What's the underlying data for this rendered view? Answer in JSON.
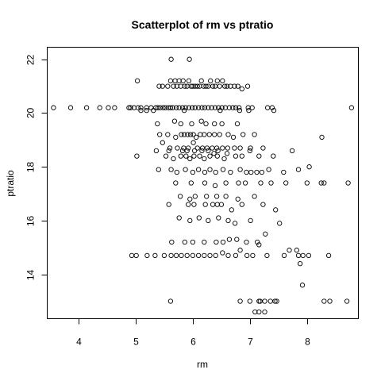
{
  "chart_data": {
    "type": "scatter",
    "title": "Scatterplot of rm vs ptratio",
    "xlabel": "rm",
    "ylabel": "ptratio",
    "xlim": [
      3.45,
      8.9
    ],
    "ylim": [
      12.35,
      22.45
    ],
    "xticks": [
      4,
      5,
      6,
      7,
      8
    ],
    "yticks": [
      14,
      16,
      18,
      20,
      22
    ],
    "grid": false,
    "marker": "open-circle",
    "points": [
      [
        3.56,
        20.2
      ],
      [
        3.86,
        20.2
      ],
      [
        4.14,
        20.2
      ],
      [
        4.37,
        20.2
      ],
      [
        4.52,
        20.2
      ],
      [
        4.63,
        20.2
      ],
      [
        4.88,
        20.2
      ],
      [
        4.91,
        20.2
      ],
      [
        4.97,
        20.2
      ],
      [
        5.04,
        20.2
      ],
      [
        5.09,
        20.2
      ],
      [
        5.19,
        20.2
      ],
      [
        5.27,
        20.2
      ],
      [
        5.35,
        20.2
      ],
      [
        5.39,
        20.2
      ],
      [
        5.43,
        20.2
      ],
      [
        5.48,
        20.2
      ],
      [
        5.52,
        20.2
      ],
      [
        5.57,
        20.2
      ],
      [
        5.61,
        20.2
      ],
      [
        5.65,
        20.2
      ],
      [
        5.71,
        20.2
      ],
      [
        5.76,
        20.2
      ],
      [
        5.82,
        20.2
      ],
      [
        5.87,
        20.2
      ],
      [
        5.93,
        20.2
      ],
      [
        5.99,
        20.2
      ],
      [
        6.04,
        20.2
      ],
      [
        6.1,
        20.2
      ],
      [
        6.16,
        20.2
      ],
      [
        6.21,
        20.2
      ],
      [
        6.27,
        20.2
      ],
      [
        6.33,
        20.2
      ],
      [
        6.39,
        20.2
      ],
      [
        6.45,
        20.2
      ],
      [
        6.51,
        20.2
      ],
      [
        6.57,
        20.2
      ],
      [
        6.64,
        20.2
      ],
      [
        6.7,
        20.2
      ],
      [
        6.75,
        20.2
      ],
      [
        6.81,
        20.2
      ],
      [
        6.97,
        20.2
      ],
      [
        7.04,
        20.2
      ],
      [
        7.31,
        20.2
      ],
      [
        7.39,
        20.2
      ],
      [
        8.78,
        20.2
      ],
      [
        5.62,
        22.0
      ],
      [
        5.94,
        22.0
      ],
      [
        5.03,
        21.2
      ],
      [
        5.41,
        21.0
      ],
      [
        5.47,
        21.0
      ],
      [
        5.56,
        21.0
      ],
      [
        5.61,
        21.2
      ],
      [
        5.66,
        21.0
      ],
      [
        5.69,
        21.2
      ],
      [
        5.72,
        21.0
      ],
      [
        5.76,
        21.2
      ],
      [
        5.79,
        21.0
      ],
      [
        5.83,
        21.2
      ],
      [
        5.86,
        21.0
      ],
      [
        5.9,
        21.0
      ],
      [
        5.93,
        21.2
      ],
      [
        5.97,
        21.0
      ],
      [
        6.0,
        21.0
      ],
      [
        6.04,
        21.0
      ],
      [
        6.08,
        21.0
      ],
      [
        6.12,
        21.0
      ],
      [
        6.15,
        21.2
      ],
      [
        6.19,
        21.0
      ],
      [
        6.23,
        21.0
      ],
      [
        6.27,
        21.0
      ],
      [
        6.31,
        21.2
      ],
      [
        6.35,
        21.0
      ],
      [
        6.39,
        21.0
      ],
      [
        6.43,
        21.2
      ],
      [
        6.47,
        21.0
      ],
      [
        6.52,
        21.2
      ],
      [
        6.56,
        21.0
      ],
      [
        6.6,
        21.0
      ],
      [
        6.66,
        21.0
      ],
      [
        6.73,
        21.0
      ],
      [
        6.79,
        21.0
      ],
      [
        6.86,
        20.9
      ],
      [
        6.96,
        21.0
      ],
      [
        5.09,
        20.1
      ],
      [
        5.19,
        20.1
      ],
      [
        5.31,
        20.1
      ],
      [
        5.85,
        20.1
      ],
      [
        6.48,
        20.1
      ],
      [
        6.82,
        20.1
      ],
      [
        6.98,
        20.1
      ],
      [
        7.42,
        20.1
      ],
      [
        5.38,
        19.6
      ],
      [
        5.68,
        19.7
      ],
      [
        5.79,
        19.6
      ],
      [
        5.98,
        19.6
      ],
      [
        6.15,
        19.7
      ],
      [
        6.23,
        19.6
      ],
      [
        6.38,
        19.6
      ],
      [
        6.51,
        19.6
      ],
      [
        6.78,
        19.6
      ],
      [
        5.42,
        19.2
      ],
      [
        5.56,
        19.2
      ],
      [
        5.7,
        19.1
      ],
      [
        5.8,
        19.2
      ],
      [
        5.85,
        19.2
      ],
      [
        5.91,
        19.2
      ],
      [
        5.96,
        19.2
      ],
      [
        6.01,
        19.2
      ],
      [
        6.06,
        19.1
      ],
      [
        6.13,
        19.2
      ],
      [
        6.2,
        19.2
      ],
      [
        6.29,
        19.2
      ],
      [
        6.38,
        19.2
      ],
      [
        6.47,
        19.2
      ],
      [
        6.62,
        19.2
      ],
      [
        6.71,
        19.1
      ],
      [
        6.88,
        19.2
      ],
      [
        7.08,
        19.2
      ],
      [
        8.26,
        19.1
      ],
      [
        5.47,
        18.9
      ],
      [
        5.6,
        18.7
      ],
      [
        5.73,
        18.7
      ],
      [
        5.84,
        18.7
      ],
      [
        5.92,
        18.7
      ],
      [
        6.01,
        18.9
      ],
      [
        6.08,
        18.7
      ],
      [
        6.17,
        18.7
      ],
      [
        6.25,
        18.7
      ],
      [
        6.34,
        18.7
      ],
      [
        6.42,
        18.7
      ],
      [
        6.52,
        18.7
      ],
      [
        6.61,
        18.7
      ],
      [
        6.73,
        18.7
      ],
      [
        6.83,
        18.7
      ],
      [
        7.01,
        18.7
      ],
      [
        7.23,
        18.7
      ],
      [
        5.36,
        18.6
      ],
      [
        5.58,
        18.6
      ],
      [
        5.82,
        18.6
      ],
      [
        5.9,
        18.6
      ],
      [
        6.03,
        18.6
      ],
      [
        6.16,
        18.6
      ],
      [
        6.27,
        18.6
      ],
      [
        6.37,
        18.5
      ],
      [
        6.44,
        18.6
      ],
      [
        6.6,
        18.5
      ],
      [
        7.0,
        18.6
      ],
      [
        7.74,
        18.6
      ],
      [
        5.02,
        18.4
      ],
      [
        5.53,
        18.4
      ],
      [
        5.66,
        18.3
      ],
      [
        5.79,
        18.4
      ],
      [
        5.88,
        18.4
      ],
      [
        5.95,
        18.3
      ],
      [
        6.02,
        18.4
      ],
      [
        6.12,
        18.4
      ],
      [
        6.2,
        18.3
      ],
      [
        6.3,
        18.4
      ],
      [
        6.43,
        18.4
      ],
      [
        6.55,
        18.3
      ],
      [
        6.75,
        18.4
      ],
      [
        6.86,
        18.4
      ],
      [
        7.16,
        18.4
      ],
      [
        7.41,
        18.4
      ],
      [
        5.4,
        17.9
      ],
      [
        5.62,
        17.9
      ],
      [
        5.72,
        17.8
      ],
      [
        5.87,
        17.9
      ],
      [
        6.0,
        17.8
      ],
      [
        6.1,
        17.9
      ],
      [
        6.21,
        17.8
      ],
      [
        6.3,
        17.9
      ],
      [
        6.4,
        17.8
      ],
      [
        6.53,
        17.9
      ],
      [
        6.66,
        17.8
      ],
      [
        6.83,
        17.9
      ],
      [
        6.94,
        17.8
      ],
      [
        7.02,
        17.8
      ],
      [
        7.12,
        17.8
      ],
      [
        7.21,
        17.8
      ],
      [
        7.33,
        17.9
      ],
      [
        7.59,
        17.8
      ],
      [
        7.85,
        17.9
      ],
      [
        8.04,
        18.0
      ],
      [
        5.7,
        17.4
      ],
      [
        5.97,
        17.4
      ],
      [
        6.21,
        17.4
      ],
      [
        6.39,
        17.3
      ],
      [
        6.58,
        17.4
      ],
      [
        6.8,
        17.4
      ],
      [
        6.92,
        17.4
      ],
      [
        7.19,
        17.4
      ],
      [
        7.37,
        17.4
      ],
      [
        7.63,
        17.4
      ],
      [
        8.0,
        17.4
      ],
      [
        8.25,
        17.4
      ],
      [
        8.3,
        17.4
      ],
      [
        8.72,
        17.4
      ],
      [
        5.78,
        16.9
      ],
      [
        5.95,
        16.8
      ],
      [
        6.04,
        16.9
      ],
      [
        6.24,
        16.9
      ],
      [
        6.42,
        16.9
      ],
      [
        6.58,
        16.9
      ],
      [
        6.79,
        16.8
      ],
      [
        7.08,
        16.9
      ],
      [
        7.45,
        16.4
      ],
      [
        5.58,
        16.6
      ],
      [
        5.92,
        16.6
      ],
      [
        6.02,
        16.6
      ],
      [
        6.22,
        16.6
      ],
      [
        6.35,
        16.6
      ],
      [
        6.43,
        16.6
      ],
      [
        6.5,
        16.6
      ],
      [
        6.68,
        16.4
      ],
      [
        6.86,
        16.6
      ],
      [
        7.23,
        16.6
      ],
      [
        5.76,
        16.1
      ],
      [
        5.95,
        16.0
      ],
      [
        6.11,
        16.1
      ],
      [
        6.27,
        16.0
      ],
      [
        6.45,
        16.1
      ],
      [
        6.62,
        16.0
      ],
      [
        6.74,
        15.9
      ],
      [
        7.01,
        16.0
      ],
      [
        7.52,
        15.9
      ],
      [
        5.63,
        15.2
      ],
      [
        5.86,
        15.2
      ],
      [
        6.0,
        15.2
      ],
      [
        6.2,
        15.2
      ],
      [
        6.41,
        15.2
      ],
      [
        6.53,
        15.2
      ],
      [
        6.64,
        15.3
      ],
      [
        6.77,
        15.3
      ],
      [
        6.94,
        15.2
      ],
      [
        7.13,
        15.2
      ],
      [
        7.27,
        15.5
      ],
      [
        5.8,
        14.7
      ],
      [
        5.9,
        14.7
      ],
      [
        6.0,
        14.7
      ],
      [
        6.1,
        14.7
      ],
      [
        6.2,
        14.7
      ],
      [
        6.3,
        14.7
      ],
      [
        6.4,
        14.7
      ],
      [
        6.52,
        14.8
      ],
      [
        6.62,
        14.7
      ],
      [
        6.75,
        14.7
      ],
      [
        6.83,
        14.9
      ],
      [
        6.95,
        14.7
      ],
      [
        7.05,
        14.7
      ],
      [
        7.16,
        15.1
      ],
      [
        7.3,
        14.7
      ],
      [
        7.6,
        14.7
      ],
      [
        7.69,
        14.9
      ],
      [
        7.82,
        14.9
      ],
      [
        7.85,
        14.7
      ],
      [
        7.93,
        14.7
      ],
      [
        8.03,
        14.7
      ],
      [
        8.38,
        14.7
      ],
      [
        4.93,
        14.7
      ],
      [
        5.01,
        14.7
      ],
      [
        5.2,
        14.7
      ],
      [
        5.34,
        14.7
      ],
      [
        5.5,
        14.7
      ],
      [
        5.62,
        14.7
      ],
      [
        5.71,
        14.7
      ],
      [
        7.88,
        14.4
      ],
      [
        7.92,
        13.6
      ],
      [
        5.61,
        13.0
      ],
      [
        6.83,
        13.0
      ],
      [
        7.0,
        13.0
      ],
      [
        7.16,
        13.0
      ],
      [
        7.18,
        13.0
      ],
      [
        7.26,
        13.0
      ],
      [
        7.36,
        13.0
      ],
      [
        7.44,
        13.0
      ],
      [
        7.47,
        13.0
      ],
      [
        8.3,
        13.0
      ],
      [
        8.4,
        13.0
      ],
      [
        8.7,
        13.0
      ],
      [
        7.09,
        12.6
      ],
      [
        7.16,
        12.6
      ],
      [
        7.26,
        12.6
      ]
    ]
  }
}
